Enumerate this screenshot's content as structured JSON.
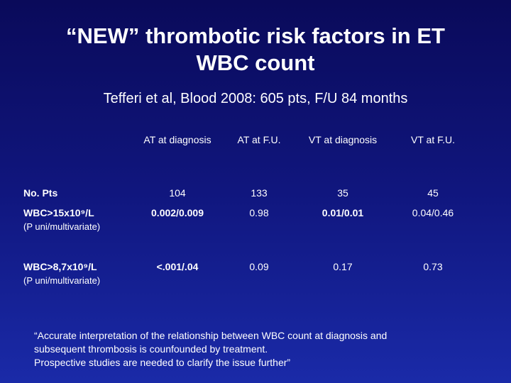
{
  "title": {
    "lines": [
      "“NEW” thrombotic risk factors in ET",
      "WBC count"
    ]
  },
  "subtitle": "Tefferi et al, Blood 2008: 605 pts, F/U 84 months",
  "table": {
    "header": [
      "AT at diagnosis",
      "AT at F.U.",
      "VT at diagnosis",
      "VT at F.U."
    ],
    "rows": [
      {
        "label": "No. Pts",
        "values": [
          104,
          133,
          35,
          45
        ]
      },
      {
        "label": "WBC>15x10⁹/L",
        "sublabel": "(P uni/multivariate)",
        "values": [
          "0.002/0.009",
          "0.98",
          "0.01/0.01",
          "0.04/0.46"
        ],
        "bold": [
          true,
          false,
          true,
          false
        ]
      },
      {
        "label": "WBC>8,7x10⁹/L",
        "sublabel": "(P uni/multivariate)",
        "values": [
          "<.001/.04",
          "0.09",
          "0.17",
          "0.73"
        ],
        "bold": [
          true,
          false,
          false,
          false
        ]
      }
    ]
  },
  "quote": [
    "“Accurate interpretation of the relationship between WBC count at diagnosis and",
    "subsequent thrombosis is counfounded by treatment.",
    "Prospective studies are needed to clarify the issue further”"
  ]
}
